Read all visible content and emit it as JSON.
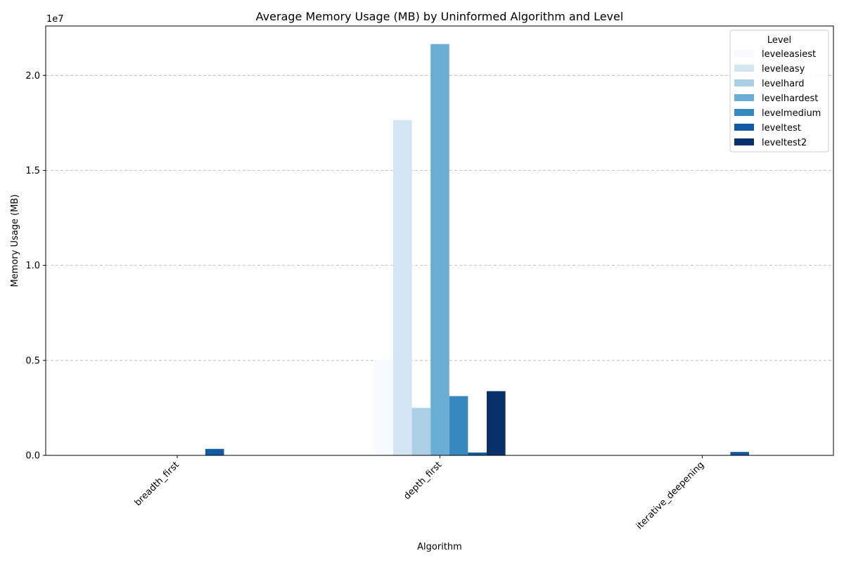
{
  "chart_data": {
    "type": "bar",
    "title": "Average Memory Usage (MB) by Uninformed Algorithm and Level",
    "xlabel": "Algorithm",
    "ylabel": "Memory Usage (MB)",
    "y_offset_label": "1e7",
    "y_scale": 10000000,
    "ylim": [
      0,
      22600000
    ],
    "yticks": [
      0,
      5000000,
      10000000,
      15000000,
      20000000
    ],
    "ytick_labels": [
      "0.0",
      "0.5",
      "1.0",
      "1.5",
      "2.0"
    ],
    "grid": "y-dashed",
    "legend_title": "Level",
    "legend_placement": "top-right",
    "categories": [
      "breadth_first",
      "depth_first",
      "iterative_deepening"
    ],
    "series": [
      {
        "name": "leveleasiest",
        "color": "#f7fbff",
        "values": [
          0,
          5050000,
          0
        ]
      },
      {
        "name": "leveleasy",
        "color": "#d3e4f3",
        "values": [
          0,
          17650000,
          0
        ]
      },
      {
        "name": "levelhard",
        "color": "#abd0e6",
        "values": [
          0,
          2500000,
          0
        ]
      },
      {
        "name": "levelhardest",
        "color": "#6aaed6",
        "values": [
          0,
          21650000,
          0
        ]
      },
      {
        "name": "levelmedium",
        "color": "#3787c0",
        "values": [
          0,
          3120000,
          0
        ]
      },
      {
        "name": "leveltest",
        "color": "#105ba4",
        "values": [
          340000,
          150000,
          180000
        ]
      },
      {
        "name": "leveltest2",
        "color": "#08306b",
        "values": [
          0,
          3380000,
          0
        ]
      }
    ]
  }
}
